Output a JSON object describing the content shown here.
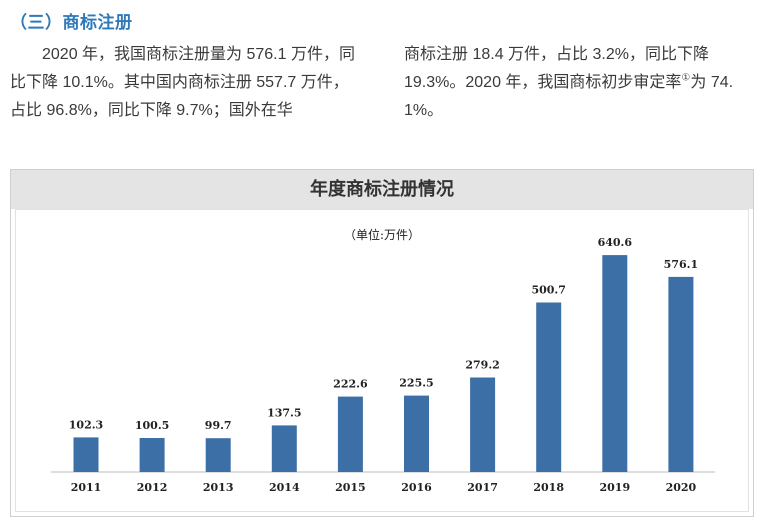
{
  "section_heading": "（三）商标注册",
  "paragraph_left": "2020 年，我国商标注册量为 576.1 万件，同比下降 10.1%。其中国内商标注册 557.7 万件，占比 96.8%，同比下降 9.7%；国外在华",
  "paragraph_right": "商标注册 18.4 万件，占比 3.2%，同比下降 19.3%。2020 年，我国商标初步审定率",
  "paragraph_right_footnote": "①",
  "paragraph_right_tail": "为 74. 1%。",
  "chart_data": {
    "type": "bar",
    "title": "年度商标注册情况",
    "unit_label": "（单位:万件）",
    "categories": [
      "2011",
      "2012",
      "2013",
      "2014",
      "2015",
      "2016",
      "2017",
      "2018",
      "2019",
      "2020"
    ],
    "values": [
      102.3,
      100.5,
      99.7,
      137.5,
      222.6,
      225.5,
      279.2,
      500.7,
      640.6,
      576.1
    ],
    "data_labels": [
      "102.3",
      "100.5",
      "99.7",
      "137.5",
      "222.6",
      "225.5",
      "279.2",
      "500.7",
      "640.6",
      "576.1"
    ],
    "ylim": [
      0,
      700
    ],
    "bar_color": "#3b6fa6",
    "grid": false,
    "legend": "none"
  }
}
